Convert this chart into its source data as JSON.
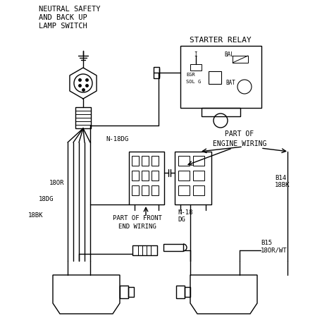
{
  "bg_color": "#ffffff",
  "line_color": "#000000",
  "title_lines": [
    "NEUTRAL SAFETY",
    "AND BACK UP",
    "LAMP SWITCH"
  ],
  "starter_relay_label": "STARTER RELAY",
  "engine_wiring_label": "PART OF\nENGINE WIRING",
  "front_end_wiring_label": "PART OF FRONT\nEND WIRING",
  "N18DG_label": "N-18DG",
  "18OR_label": "18OR",
  "18DG_label": "18DG",
  "18BK_label": "18BK",
  "N18DG_bot_label": "N-18\nDG",
  "B14_label": "B14\n18BK",
  "B15_label": "B15\n18OR/WT"
}
